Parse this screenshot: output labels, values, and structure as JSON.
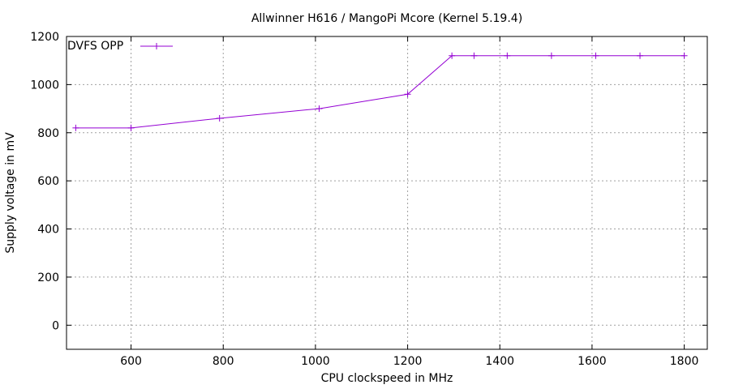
{
  "chart_data": {
    "type": "line",
    "title": "Allwinner H616 / MangoPi Mcore (Kernel 5.19.4)",
    "xlabel": "CPU clockspeed in MHz",
    "ylabel": "Supply voltage in mV",
    "xlim": [
      460,
      1850
    ],
    "ylim": [
      -100,
      1200
    ],
    "xticks": [
      600,
      800,
      1000,
      1200,
      1400,
      1600,
      1800
    ],
    "yticks": [
      0,
      200,
      400,
      600,
      800,
      1000,
      1200
    ],
    "grid": true,
    "legend_position": "top-left",
    "series": [
      {
        "name": "DVFS OPP",
        "color": "#9400d3",
        "marker": "plus",
        "points": [
          [
            480,
            820
          ],
          [
            600,
            820
          ],
          [
            792,
            860
          ],
          [
            1008,
            900
          ],
          [
            1200,
            960
          ],
          [
            1296,
            1120
          ],
          [
            1344,
            1120
          ],
          [
            1416,
            1120
          ],
          [
            1512,
            1120
          ],
          [
            1608,
            1120
          ],
          [
            1704,
            1120
          ],
          [
            1800,
            1120
          ]
        ]
      }
    ]
  }
}
